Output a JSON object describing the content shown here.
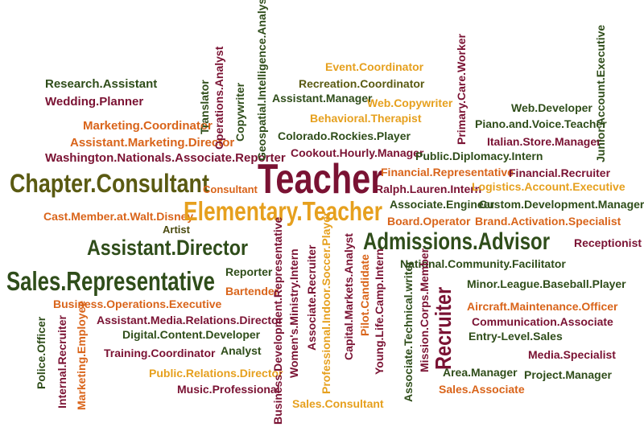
{
  "colors": {
    "olive": "#5a5a12",
    "dark_green": "#2f4d1a",
    "maroon": "#7a1233",
    "orange": "#d9641a",
    "gold": "#e6a01e",
    "dark_olive": "#4a4a10",
    "background": "#ffffff"
  },
  "words": {
    "research_assistant": "Research.Assistant",
    "wedding_planner": "Wedding.Planner",
    "marketing_coordinator": "Marketing.Coordinator",
    "assistant_marketing_director": "Assistant.Marketing.Director",
    "washington_nationals_associate_reporter": "Washington.Nationals.Associate.Reporter",
    "chapter_consultant": "Chapter.Consultant",
    "consultant": "Consultant",
    "cast_member_at_walt_disney": "Cast.Member.at.Walt.Disney",
    "artist": "Artist",
    "assistant_director": "Assistant.Director",
    "sales_representative": "Sales.Representative",
    "reporter": "Reporter",
    "bartender": "Bartender",
    "business_operations_executive": "Business.Operations.Executive",
    "assistant_media_relations_director": "Assistant.Media.Relations.Director",
    "digital_content_developer": "Digital.Content.Developer",
    "training_coordinator": "Training.Coordinator",
    "analyst": "Analyst",
    "public_relations_director": "Public.Relations.Director",
    "music_professional": "Music.Professional",
    "sales_consultant": "Sales.Consultant",
    "police_officer": "Police.Officer",
    "internal_recruiter": "Internal.Recruiter",
    "marketing_employee": "Marketing.Employee",
    "translator": "Translator",
    "operations_analyst": "Operations.Analyst",
    "copywriter": "Copywriter",
    "geospatial_intelligence_analyst": "Geospatial.Intelligence.Analyst",
    "event_coordinator": "Event.Coordinator",
    "recreation_coordinator": "Recreation.Coordinator",
    "assistant_manager": "Assistant.Manager",
    "web_copywriter": "Web.Copywriter",
    "behavioral_therapist": "Behavioral.Therapist",
    "colorado_rockies_player": "Colorado.Rockies.Player",
    "cookout_hourly_manager": "Cookout.Hourly.Manager",
    "teacher": "Teacher",
    "elementary_teacher": "Elementary.Teacher",
    "primary_care_worker": "Primary.Care.Worker",
    "web_developer": "Web.Developer",
    "piano_and_voice_teacher": "Piano.and.Voice.Teacher",
    "italian_store_manager": "Italian.Store.Manager",
    "junior_account_executive": "Junior.Account.Executive",
    "public_diplomacy_intern": "Public.Diplomacy.Intern",
    "financial_representative": "Financial.Representative",
    "financial_recruiter": "Financial.Recruiter",
    "ralph_lauren_intern": "Ralph.Lauren.Intern",
    "logistics_account_executive": "Logistics.Account.Executive",
    "associate_engineer": "Associate.Engineer",
    "custom_development_manager": "Custom.Development.Manager",
    "board_operator": "Board.Operator",
    "brand_activation_specialist": "Brand.Activation.Specialist",
    "admissions_advisor": "Admissions.Advisor",
    "receptionist": "Receptionist",
    "national_community_facilitator": "National.Community.Facilitator",
    "minor_league_baseball_player": "Minor.League.Baseball.Player",
    "aircraft_maintenance_officer": "Aircraft.Maintenance.Officer",
    "communication_associate": "Communication.Associate",
    "entry_level_sales": "Entry-Level.Sales",
    "media_specialist": "Media.Specialist",
    "project_manager": "Project.Manager",
    "area_manager": "Area.Manager",
    "sales_associate": "Sales.Associate",
    "recruiter": "Recruiter",
    "business_development_representative": "Business.Development.Representative",
    "womens_ministry_intern": "Women's.Ministry.Intern",
    "associate_recruiter": "Associate.Recruiter",
    "professional_indoor_soccer_player": "Professional.Indoor.Soccer.Player",
    "capital_markets_analyst": "Capital.Markets.Analyst",
    "pilot_candidate": "Pilot.Candidate",
    "young_life_camp_intern": "Young.Life.Camp.Intern",
    "associate_technical_writer": "Associate.Technical.writer",
    "mission_corps_member": "Mission.Corps.Member"
  }
}
